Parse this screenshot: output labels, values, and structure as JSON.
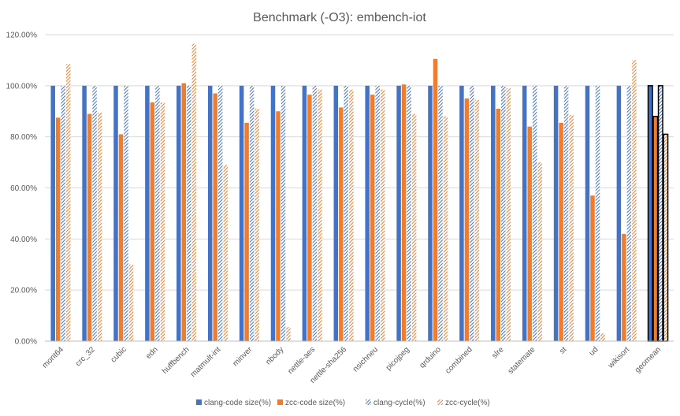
{
  "chart_data": {
    "type": "bar",
    "title": "Benchmark (-O3): embench-iot",
    "xlabel": "",
    "ylabel": "",
    "ylim": [
      0,
      120
    ],
    "y_ticks": [
      "0.00%",
      "20.00%",
      "40.00%",
      "60.00%",
      "80.00%",
      "100.00%",
      "120.00%"
    ],
    "grid": true,
    "legend_position": "bottom",
    "categories": [
      "mont64",
      "crc_32",
      "cubic",
      "edn",
      "huffbench",
      "matmult-int",
      "minver",
      "nbody",
      "nettle-aes",
      "nettle-sha256",
      "nsichneu",
      "picojpeg",
      "qrduino",
      "combined",
      "slre",
      "statemate",
      "st",
      "ud",
      "wikisort",
      "geomean"
    ],
    "series": [
      {
        "name": "clang-code size(%)",
        "color": "#4472C4",
        "style": "solid",
        "values": [
          100,
          100,
          100,
          100,
          100,
          100,
          100,
          100,
          100,
          100,
          100,
          100,
          100,
          100,
          100,
          100,
          100,
          100,
          100,
          100
        ]
      },
      {
        "name": "zcc-code size(%)",
        "color": "#ED7D31",
        "style": "solid",
        "values": [
          87.5,
          89,
          81,
          93.5,
          101,
          97,
          85.5,
          90,
          96.5,
          91.5,
          96.5,
          100.5,
          110.5,
          95,
          91,
          84,
          85.5,
          57,
          42,
          88
        ]
      },
      {
        "name": "clang-cycle(%)",
        "color": "#4472C4",
        "style": "hatched",
        "values": [
          100,
          100,
          100,
          100,
          100,
          100,
          100,
          100,
          100,
          100,
          100,
          100,
          100,
          100,
          100,
          100,
          100,
          100,
          100,
          100
        ]
      },
      {
        "name": "zcc-cycle(%)",
        "color": "#ED7D31",
        "style": "hatched",
        "values": [
          108.5,
          89.5,
          30,
          93.5,
          116.5,
          69,
          91,
          5.5,
          98.5,
          98.5,
          98.5,
          89,
          88,
          94.5,
          99,
          70,
          88.5,
          3,
          110,
          81
        ]
      }
    ]
  }
}
